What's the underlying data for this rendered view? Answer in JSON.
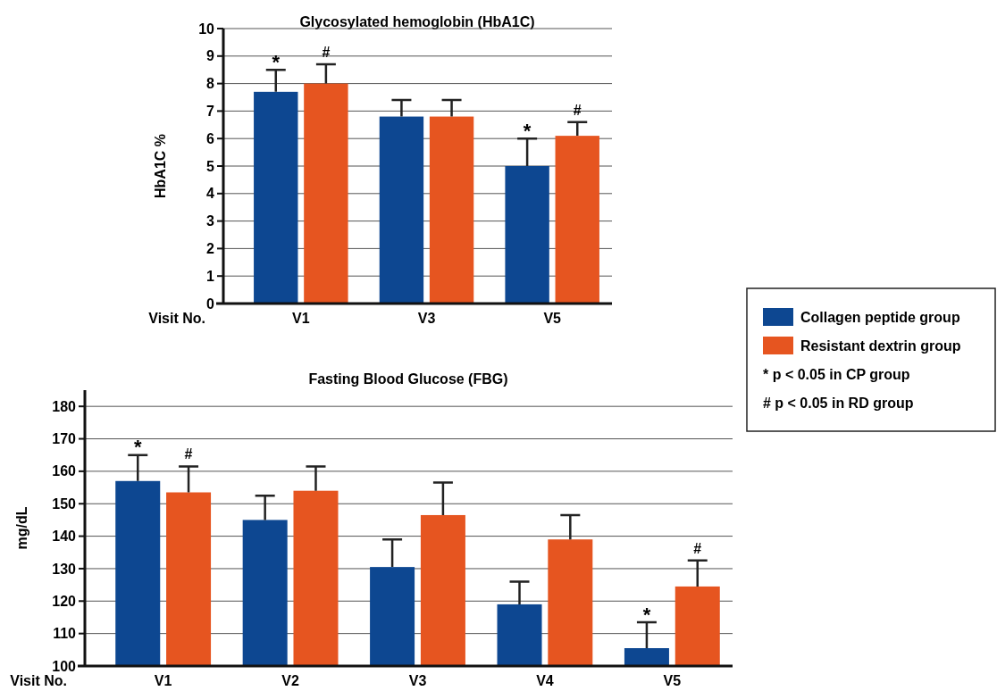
{
  "chart_data": [
    {
      "type": "bar",
      "title": "Glycosylated hemoglobin (HbA1C)",
      "xlabel": "Visit No.",
      "ylabel": "HbA1C %",
      "categories": [
        "V1",
        "V3",
        "V5"
      ],
      "series": [
        {
          "name": "Collagen peptide group",
          "color": "#0d4791",
          "values": [
            7.7,
            6.8,
            5.0
          ],
          "errors": [
            0.8,
            0.6,
            1.0
          ]
        },
        {
          "name": "Resistant dextrin group",
          "color": "#e65520",
          "values": [
            8.0,
            6.8,
            6.1
          ],
          "errors": [
            0.7,
            0.6,
            0.5
          ]
        }
      ],
      "ylim": [
        0,
        10
      ],
      "yticks": [
        0,
        1,
        2,
        3,
        4,
        5,
        6,
        7,
        8,
        9,
        10
      ],
      "grid": "y",
      "legend": "right",
      "annotations": [
        {
          "text": "*",
          "x": "V1",
          "y": 7.7
        },
        {
          "text": "#",
          "x": "V1",
          "y": 8.0
        },
        {
          "text": "*",
          "x": "V5",
          "y": 5.0
        },
        {
          "text": "#",
          "x": "V5",
          "y": 6.1
        },
        "* p < 0.05 in CP group",
        "# p < 0.05 in RD group"
      ]
    },
    {
      "type": "bar",
      "title": "Fasting Blood Glucose (FBG)",
      "xlabel": "Visit No.",
      "ylabel": "mg/dL",
      "categories": [
        "V1",
        "V2",
        "V3",
        "V4",
        "V5"
      ],
      "series": [
        {
          "color": "#0d4791",
          "values": [
            157,
            145,
            130.5,
            119,
            105.5
          ],
          "errors": [
            8,
            7.5,
            8.5,
            7,
            8
          ]
        },
        {
          "color": "#e65520",
          "values": [
            153.5,
            154,
            146.5,
            139,
            124.5
          ],
          "errors": [
            8,
            7.5,
            10,
            7.5,
            8
          ]
        }
      ],
      "ylim": [
        100,
        185
      ],
      "yticks": [
        100,
        110,
        120,
        130,
        140,
        150,
        160,
        170,
        180
      ],
      "grid": "y",
      "annotations": [
        {
          "text": "*",
          "x": "V1",
          "y": 157
        },
        {
          "text": "#",
          "x": "V1",
          "y": 153.5
        },
        {
          "text": "*",
          "x": "V5",
          "y": 105.5
        },
        {
          "text": "#",
          "x": "V5",
          "y": 124.5
        }
      ]
    }
  ]
}
